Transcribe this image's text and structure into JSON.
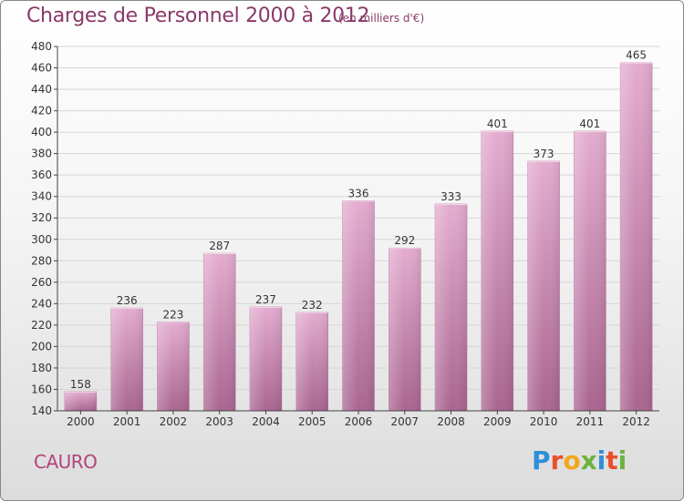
{
  "header": {
    "title": "Charges de Personnel 2000 à 2012",
    "unit": "(en milliers d'€)"
  },
  "footer": {
    "commune": "CAURO",
    "logo_letters": [
      "P",
      "r",
      "o",
      "x",
      "i",
      "t",
      "i"
    ],
    "logo_colors": [
      "#2e8fd8",
      "#e8502a",
      "#f2a81d",
      "#6cb33e",
      "#2e8fd8",
      "#e8502a",
      "#6cb33e"
    ]
  },
  "colors": {
    "bar": "#cc88b2",
    "bar_light": "#e4acd0",
    "bar_dark": "#a96590",
    "grid": "#d6d6d6",
    "axis": "#444444"
  },
  "chart_data": {
    "type": "bar",
    "categories": [
      "2000",
      "2001",
      "2002",
      "2003",
      "2004",
      "2005",
      "2006",
      "2007",
      "2008",
      "2009",
      "2010",
      "2011",
      "2012"
    ],
    "values": [
      158,
      236,
      223,
      287,
      237,
      232,
      336,
      292,
      333,
      401,
      373,
      401,
      465
    ],
    "ylim": [
      140,
      480
    ],
    "yticks": [
      140,
      160,
      180,
      200,
      220,
      240,
      260,
      280,
      300,
      320,
      340,
      360,
      380,
      400,
      420,
      440,
      460,
      480
    ],
    "grid": true,
    "legend": "none",
    "title": "Charges de Personnel 2000 à 2012",
    "xlabel": "",
    "ylabel": ""
  }
}
